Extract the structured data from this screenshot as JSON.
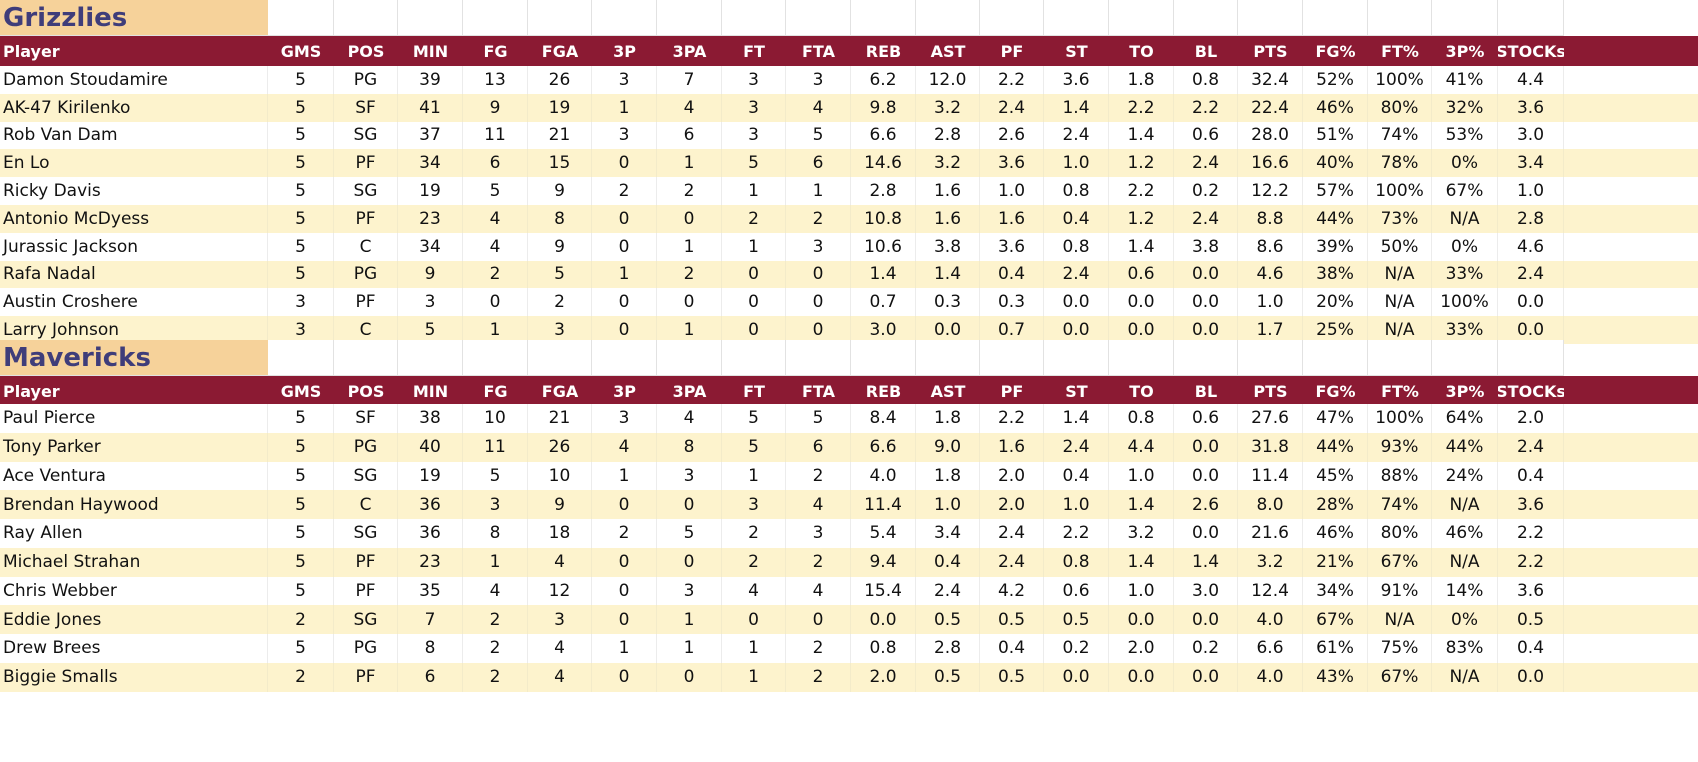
{
  "colors": {
    "team_label_bg": "#f6d29a",
    "team_label_text": "#3f3d7a",
    "header_bg": "#8b1a33",
    "header_text": "#ffffff",
    "row_white": "#ffffff",
    "row_alt": "#fdf3cd"
  },
  "columns": [
    "Player",
    "GMS",
    "POS",
    "MIN",
    "FG",
    "FGA",
    "3P",
    "3PA",
    "FT",
    "FTA",
    "REB",
    "AST",
    "PF",
    "ST",
    "TO",
    "BL",
    "PTS",
    "FG%",
    "FT%",
    "3P%",
    "STOCKs"
  ],
  "teams": [
    {
      "name": "Grizzlies",
      "rows": [
        [
          "Damon Stoudamire",
          "5",
          "PG",
          "39",
          "13",
          "26",
          "3",
          "7",
          "3",
          "3",
          "6.2",
          "12.0",
          "2.2",
          "3.6",
          "1.8",
          "0.8",
          "32.4",
          "52%",
          "100%",
          "41%",
          "4.4"
        ],
        [
          "AK-47 Kirilenko",
          "5",
          "SF",
          "41",
          "9",
          "19",
          "1",
          "4",
          "3",
          "4",
          "9.8",
          "3.2",
          "2.4",
          "1.4",
          "2.2",
          "2.2",
          "22.4",
          "46%",
          "80%",
          "32%",
          "3.6"
        ],
        [
          "Rob Van Dam",
          "5",
          "SG",
          "37",
          "11",
          "21",
          "3",
          "6",
          "3",
          "5",
          "6.6",
          "2.8",
          "2.6",
          "2.4",
          "1.4",
          "0.6",
          "28.0",
          "51%",
          "74%",
          "53%",
          "3.0"
        ],
        [
          "En Lo",
          "5",
          "PF",
          "34",
          "6",
          "15",
          "0",
          "1",
          "5",
          "6",
          "14.6",
          "3.2",
          "3.6",
          "1.0",
          "1.2",
          "2.4",
          "16.6",
          "40%",
          "78%",
          "0%",
          "3.4"
        ],
        [
          "Ricky Davis",
          "5",
          "SG",
          "19",
          "5",
          "9",
          "2",
          "2",
          "1",
          "1",
          "2.8",
          "1.6",
          "1.0",
          "0.8",
          "2.2",
          "0.2",
          "12.2",
          "57%",
          "100%",
          "67%",
          "1.0"
        ],
        [
          "Antonio McDyess",
          "5",
          "PF",
          "23",
          "4",
          "8",
          "0",
          "0",
          "2",
          "2",
          "10.8",
          "1.6",
          "1.6",
          "0.4",
          "1.2",
          "2.4",
          "8.8",
          "44%",
          "73%",
          "N/A",
          "2.8"
        ],
        [
          "Jurassic Jackson",
          "5",
          "C",
          "34",
          "4",
          "9",
          "0",
          "1",
          "1",
          "3",
          "10.6",
          "3.8",
          "3.6",
          "0.8",
          "1.4",
          "3.8",
          "8.6",
          "39%",
          "50%",
          "0%",
          "4.6"
        ],
        [
          "Rafa Nadal",
          "5",
          "PG",
          "9",
          "2",
          "5",
          "1",
          "2",
          "0",
          "0",
          "1.4",
          "1.4",
          "0.4",
          "2.4",
          "0.6",
          "0.0",
          "4.6",
          "38%",
          "N/A",
          "33%",
          "2.4"
        ],
        [
          "Austin Croshere",
          "3",
          "PF",
          "3",
          "0",
          "2",
          "0",
          "0",
          "0",
          "0",
          "0.7",
          "0.3",
          "0.3",
          "0.0",
          "0.0",
          "0.0",
          "1.0",
          "20%",
          "N/A",
          "100%",
          "0.0"
        ],
        [
          "Larry Johnson",
          "3",
          "C",
          "5",
          "1",
          "3",
          "0",
          "1",
          "0",
          "0",
          "3.0",
          "0.0",
          "0.7",
          "0.0",
          "0.0",
          "0.0",
          "1.7",
          "25%",
          "N/A",
          "33%",
          "0.0"
        ]
      ]
    },
    {
      "name": "Mavericks",
      "rows": [
        [
          "Paul Pierce",
          "5",
          "SF",
          "38",
          "10",
          "21",
          "3",
          "4",
          "5",
          "5",
          "8.4",
          "1.8",
          "2.2",
          "1.4",
          "0.8",
          "0.6",
          "27.6",
          "47%",
          "100%",
          "64%",
          "2.0"
        ],
        [
          "Tony Parker",
          "5",
          "PG",
          "40",
          "11",
          "26",
          "4",
          "8",
          "5",
          "6",
          "6.6",
          "9.0",
          "1.6",
          "2.4",
          "4.4",
          "0.0",
          "31.8",
          "44%",
          "93%",
          "44%",
          "2.4"
        ],
        [
          "Ace Ventura",
          "5",
          "SG",
          "19",
          "5",
          "10",
          "1",
          "3",
          "1",
          "2",
          "4.0",
          "1.8",
          "2.0",
          "0.4",
          "1.0",
          "0.0",
          "11.4",
          "45%",
          "88%",
          "24%",
          "0.4"
        ],
        [
          "Brendan Haywood",
          "5",
          "C",
          "36",
          "3",
          "9",
          "0",
          "0",
          "3",
          "4",
          "11.4",
          "1.0",
          "2.0",
          "1.0",
          "1.4",
          "2.6",
          "8.0",
          "28%",
          "74%",
          "N/A",
          "3.6"
        ],
        [
          "Ray Allen",
          "5",
          "SG",
          "36",
          "8",
          "18",
          "2",
          "5",
          "2",
          "3",
          "5.4",
          "3.4",
          "2.4",
          "2.2",
          "3.2",
          "0.0",
          "21.6",
          "46%",
          "80%",
          "46%",
          "2.2"
        ],
        [
          "Michael Strahan",
          "5",
          "PF",
          "23",
          "1",
          "4",
          "0",
          "0",
          "2",
          "2",
          "9.4",
          "0.4",
          "2.4",
          "0.8",
          "1.4",
          "1.4",
          "3.2",
          "21%",
          "67%",
          "N/A",
          "2.2"
        ],
        [
          "Chris Webber",
          "5",
          "PF",
          "35",
          "4",
          "12",
          "0",
          "3",
          "4",
          "4",
          "15.4",
          "2.4",
          "4.2",
          "0.6",
          "1.0",
          "3.0",
          "12.4",
          "34%",
          "91%",
          "14%",
          "3.6"
        ],
        [
          "Eddie Jones",
          "2",
          "SG",
          "7",
          "2",
          "3",
          "0",
          "1",
          "0",
          "0",
          "0.0",
          "0.5",
          "0.5",
          "0.5",
          "0.0",
          "0.0",
          "4.0",
          "67%",
          "N/A",
          "0%",
          "0.5"
        ],
        [
          "Drew Brees",
          "5",
          "PG",
          "8",
          "2",
          "4",
          "1",
          "1",
          "1",
          "2",
          "0.8",
          "2.8",
          "0.4",
          "0.2",
          "2.0",
          "0.2",
          "6.6",
          "61%",
          "75%",
          "83%",
          "0.4"
        ],
        [
          "Biggie Smalls",
          "2",
          "PF",
          "6",
          "2",
          "4",
          "0",
          "0",
          "1",
          "2",
          "2.0",
          "0.5",
          "0.5",
          "0.0",
          "0.0",
          "0.0",
          "4.0",
          "43%",
          "67%",
          "N/A",
          "0.0"
        ]
      ]
    }
  ]
}
